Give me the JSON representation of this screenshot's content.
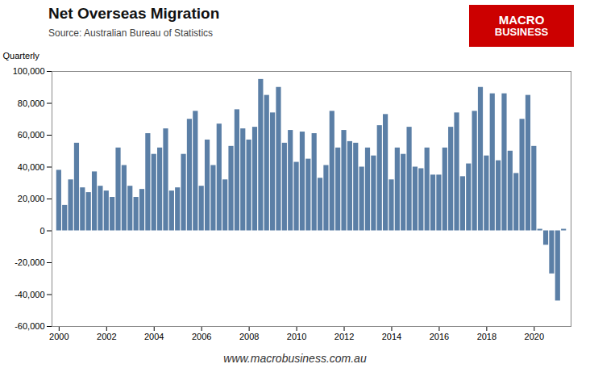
{
  "chart_data": {
    "type": "bar",
    "title": "Net Overseas Migration",
    "subtitle": "Source: Australian Bureau of Statistics",
    "ylabel": "Quarterly",
    "caption": "www.macrobusiness.com.au",
    "annotations": [
      {
        "text": "MACRO",
        "color": "#ffffff",
        "background": "#cc0000"
      },
      {
        "text": "BUSINESS",
        "color": "#ffffff",
        "background": "#cc0000"
      }
    ],
    "color": "#5b7fa6",
    "x": [
      2000.0,
      2000.25,
      2000.5,
      2000.75,
      2001.0,
      2001.25,
      2001.5,
      2001.75,
      2002.0,
      2002.25,
      2002.5,
      2002.75,
      2003.0,
      2003.25,
      2003.5,
      2003.75,
      2004.0,
      2004.25,
      2004.5,
      2004.75,
      2005.0,
      2005.25,
      2005.5,
      2005.75,
      2006.0,
      2006.25,
      2006.5,
      2006.75,
      2007.0,
      2007.25,
      2007.5,
      2007.75,
      2008.0,
      2008.25,
      2008.5,
      2008.75,
      2009.0,
      2009.25,
      2009.5,
      2009.75,
      2010.0,
      2010.25,
      2010.5,
      2010.75,
      2011.0,
      2011.25,
      2011.5,
      2011.75,
      2012.0,
      2012.25,
      2012.5,
      2012.75,
      2013.0,
      2013.25,
      2013.5,
      2013.75,
      2014.0,
      2014.25,
      2014.5,
      2014.75,
      2015.0,
      2015.25,
      2015.5,
      2015.75,
      2016.0,
      2016.25,
      2016.5,
      2016.75,
      2017.0,
      2017.25,
      2017.5,
      2017.75,
      2018.0,
      2018.25,
      2018.5,
      2018.75,
      2019.0,
      2019.25,
      2019.5,
      2019.75,
      2020.0,
      2020.25,
      2020.5,
      2020.75,
      2021.0,
      2021.25
    ],
    "values": [
      38000,
      16000,
      32000,
      55000,
      27000,
      24000,
      37000,
      28000,
      25000,
      21000,
      52000,
      41000,
      28000,
      21000,
      26000,
      61000,
      48000,
      52000,
      64000,
      25000,
      27000,
      48000,
      70000,
      75000,
      28000,
      57000,
      41000,
      67000,
      32000,
      53000,
      76000,
      64000,
      57000,
      65000,
      95000,
      85000,
      74000,
      90000,
      55000,
      63000,
      43000,
      62000,
      45000,
      61000,
      33000,
      41000,
      75000,
      52000,
      63000,
      56000,
      55000,
      40000,
      52000,
      47000,
      66000,
      73000,
      32000,
      52000,
      48000,
      65000,
      40000,
      39000,
      52000,
      35000,
      35000,
      52000,
      65000,
      74000,
      34000,
      42000,
      75000,
      90000,
      47000,
      86000,
      44000,
      86000,
      50000,
      36000,
      70000,
      85000,
      53000,
      1000,
      -9000,
      -27000,
      -44000,
      1000
    ],
    "xlim": [
      1999.7,
      2021.55
    ],
    "xticks": [
      2000,
      2002,
      2004,
      2006,
      2008,
      2010,
      2012,
      2014,
      2016,
      2018,
      2020
    ],
    "ylim": [
      -60000,
      100000
    ],
    "yticks": [
      {
        "value": -60000,
        "label": "-60,000"
      },
      {
        "value": -40000,
        "label": "-40,000"
      },
      {
        "value": -20000,
        "label": "-20,000"
      },
      0,
      {
        "value": 20000,
        "label": "20,000"
      },
      {
        "value": 40000,
        "label": "40,000"
      },
      {
        "value": 60000,
        "label": "60,000"
      },
      {
        "value": 80000,
        "label": "80,000"
      },
      {
        "value": 100000,
        "label": "100,000"
      }
    ],
    "grid": false
  }
}
